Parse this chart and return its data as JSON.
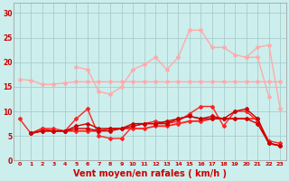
{
  "background_color": "#cceeed",
  "grid_color": "#aacccc",
  "xlabel": "Vent moyen/en rafales ( km/h )",
  "xlabel_color": "#cc0000",
  "xlabel_fontsize": 7,
  "tick_color": "#cc0000",
  "yticks": [
    0,
    5,
    10,
    15,
    20,
    25,
    30
  ],
  "xticks": [
    0,
    1,
    2,
    3,
    4,
    5,
    6,
    7,
    8,
    9,
    10,
    11,
    12,
    13,
    14,
    15,
    16,
    17,
    18,
    19,
    20,
    21,
    22,
    23
  ],
  "xlim": [
    -0.5,
    23.5
  ],
  "ylim": [
    0,
    32
  ],
  "lines": [
    {
      "x": [
        0,
        1,
        2,
        3,
        4,
        5,
        6,
        7,
        8,
        9,
        10,
        11,
        12,
        13,
        14,
        15,
        16,
        17,
        18,
        19,
        20,
        21,
        22,
        23
      ],
      "y": [
        16.5,
        16.3,
        15.5,
        15.5,
        15.8,
        16.0,
        16.0,
        16.0,
        16.0,
        16.0,
        16.0,
        16.0,
        16.0,
        16.0,
        16.0,
        16.0,
        16.0,
        16.0,
        16.0,
        16.0,
        16.0,
        16.0,
        16.0,
        16.0
      ],
      "color": "#ffaaaa",
      "lw": 1.0,
      "marker": "D",
      "ms": 2.0
    },
    {
      "x": [
        4,
        5,
        6,
        7,
        8,
        9,
        10,
        11,
        12,
        13,
        14,
        15,
        16,
        17,
        18,
        19,
        20,
        21,
        22
      ],
      "y": [
        null,
        19.0,
        18.5,
        14.0,
        13.5,
        15.0,
        18.5,
        19.5,
        21.0,
        18.5,
        21.0,
        26.5,
        26.5,
        23.0,
        23.0,
        21.5,
        21.0,
        21.0,
        13.0
      ],
      "color": "#ffaaaa",
      "lw": 1.0,
      "marker": "D",
      "ms": 2.0
    },
    {
      "x": [
        20,
        21,
        22,
        23
      ],
      "y": [
        21.0,
        23.0,
        23.5,
        10.5
      ],
      "color": "#ffaaaa",
      "lw": 1.0,
      "marker": "D",
      "ms": 2.0
    },
    {
      "x": [
        0,
        1,
        2,
        3,
        4,
        5,
        6,
        7,
        8,
        9,
        10,
        11,
        12,
        13,
        14,
        15,
        16,
        17,
        18,
        19,
        20,
        21,
        22,
        23
      ],
      "y": [
        8.5,
        5.5,
        6.5,
        6.5,
        6.0,
        8.5,
        10.5,
        5.0,
        4.5,
        4.5,
        7.0,
        7.5,
        8.0,
        7.5,
        8.0,
        9.5,
        11.0,
        11.0,
        7.0,
        10.0,
        10.0,
        8.0,
        4.0,
        3.5
      ],
      "color": "#ff2222",
      "lw": 1.0,
      "marker": "D",
      "ms": 2.0
    },
    {
      "x": [
        1,
        2,
        3,
        4,
        5,
        6,
        7,
        8,
        9,
        10,
        11,
        12,
        13,
        14,
        15,
        16,
        17,
        18,
        19,
        20,
        21,
        22,
        23
      ],
      "y": [
        5.5,
        6.5,
        6.0,
        6.0,
        6.0,
        6.0,
        6.0,
        6.5,
        6.5,
        6.5,
        6.5,
        7.0,
        7.0,
        7.5,
        8.0,
        8.0,
        8.5,
        8.5,
        8.5,
        8.5,
        8.5,
        3.5,
        3.0
      ],
      "color": "#ff2222",
      "lw": 1.3,
      "marker": "D",
      "ms": 2.0
    },
    {
      "x": [
        1,
        2,
        3,
        4,
        5,
        6,
        7,
        8,
        9,
        10,
        11,
        12,
        13,
        14,
        15,
        16,
        17,
        18,
        19,
        20,
        21,
        22,
        23
      ],
      "y": [
        5.5,
        6.0,
        6.0,
        6.0,
        7.0,
        7.5,
        6.5,
        6.5,
        6.5,
        7.5,
        7.5,
        7.5,
        8.0,
        8.5,
        9.0,
        8.5,
        8.5,
        8.5,
        10.0,
        10.5,
        8.5,
        3.5,
        3.0
      ],
      "color": "#cc0000",
      "lw": 1.0,
      "marker": "D",
      "ms": 2.0
    },
    {
      "x": [
        1,
        2,
        3,
        4,
        5,
        6,
        7,
        8,
        9,
        10,
        11,
        12,
        13,
        14,
        15,
        16,
        17,
        18,
        19,
        20,
        21,
        22,
        23
      ],
      "y": [
        5.5,
        6.0,
        6.0,
        6.0,
        6.5,
        6.5,
        6.0,
        6.0,
        6.5,
        7.0,
        7.5,
        7.5,
        7.5,
        8.5,
        9.0,
        8.5,
        9.0,
        8.5,
        8.5,
        8.5,
        7.5,
        3.5,
        3.0
      ],
      "color": "#cc0000",
      "lw": 1.0,
      "marker": "D",
      "ms": 2.0
    }
  ],
  "arrows": [
    "→",
    "→",
    "↗",
    "↘",
    "↓",
    "↓",
    "↓",
    "↓",
    "↘",
    "↓",
    "↑",
    "↘",
    "↘",
    "↓",
    "↘",
    "↘",
    "↘",
    "↓",
    "↑",
    "→",
    "↓",
    "↘",
    "↓"
  ]
}
